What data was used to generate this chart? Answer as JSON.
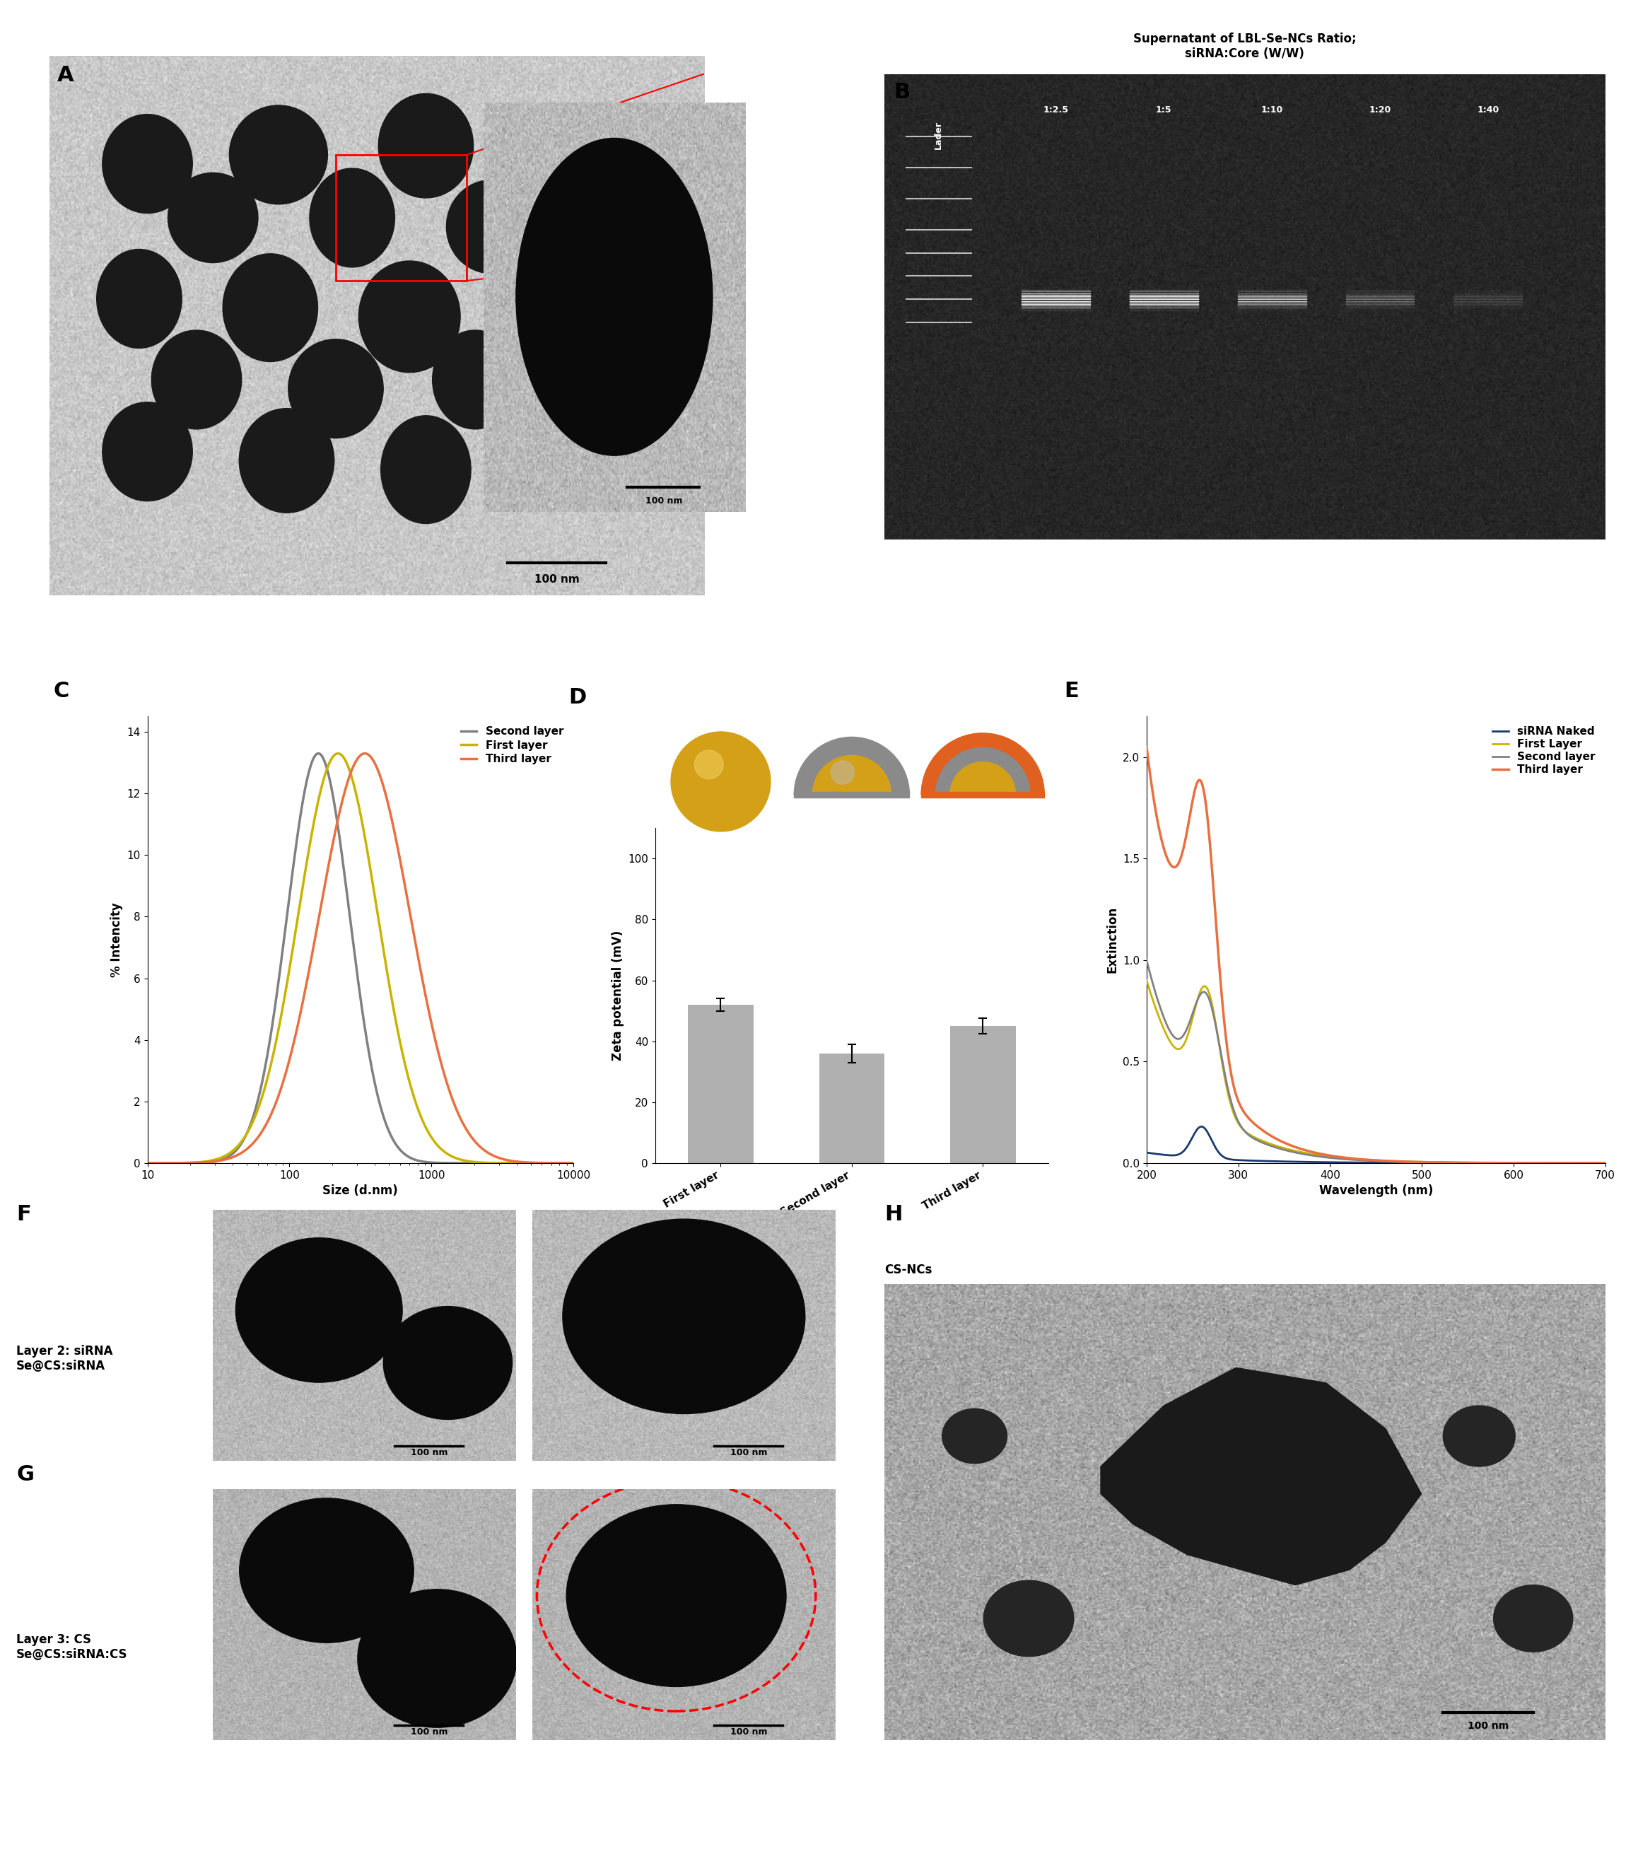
{
  "panel_label_fontsize": 22,
  "C_ylabel": "% Intencity",
  "C_xlabel": "Size (d.nm)",
  "C_yticks": [
    0,
    2,
    4,
    6,
    8,
    10,
    12,
    14
  ],
  "C_ylim": [
    0,
    14.5
  ],
  "C_first_layer_color": "#C8B400",
  "C_second_layer_color": "#808080",
  "C_third_layer_color": "#E87040",
  "C_peak_intensity": 13.3,
  "D_bars": [
    "First layer",
    "Second layer",
    "Third layer"
  ],
  "D_values": [
    52,
    36,
    45
  ],
  "D_errors": [
    2,
    3,
    2.5
  ],
  "D_bar_color": "#B0B0B0",
  "D_ylabel": "Zeta potential (mV)",
  "D_ylim": [
    0,
    110
  ],
  "D_yticks": [
    0,
    20,
    40,
    60,
    80,
    100
  ],
  "E_ylabel": "Extinction",
  "E_xlabel": "Wavelength (nm)",
  "E_ylim": [
    0.0,
    2.2
  ],
  "E_xlim": [
    200,
    700
  ],
  "E_yticks": [
    0.0,
    0.5,
    1.0,
    1.5,
    2.0
  ],
  "E_xticks": [
    200,
    300,
    400,
    500,
    600,
    700
  ],
  "E_siRNA_color": "#1A3A6E",
  "E_first_color": "#C8B400",
  "E_second_color": "#808080",
  "E_third_color": "#E87040",
  "B_title_line1": "Supernatant of LBL-Se-NCs Ratio;",
  "B_title_line2": "siRNA:Core (W/W)",
  "B_labels": [
    "Lader",
    "1:2.5",
    "1:5",
    "1:10",
    "1:20",
    "1:40"
  ],
  "F_label": "Layer 2: siRNA\nSe@CS:siRNA",
  "G_label": "Layer 3: CS\nSe@CS:siRNA:CS",
  "H_label": "CS-NCs",
  "bg_color": "#ffffff"
}
